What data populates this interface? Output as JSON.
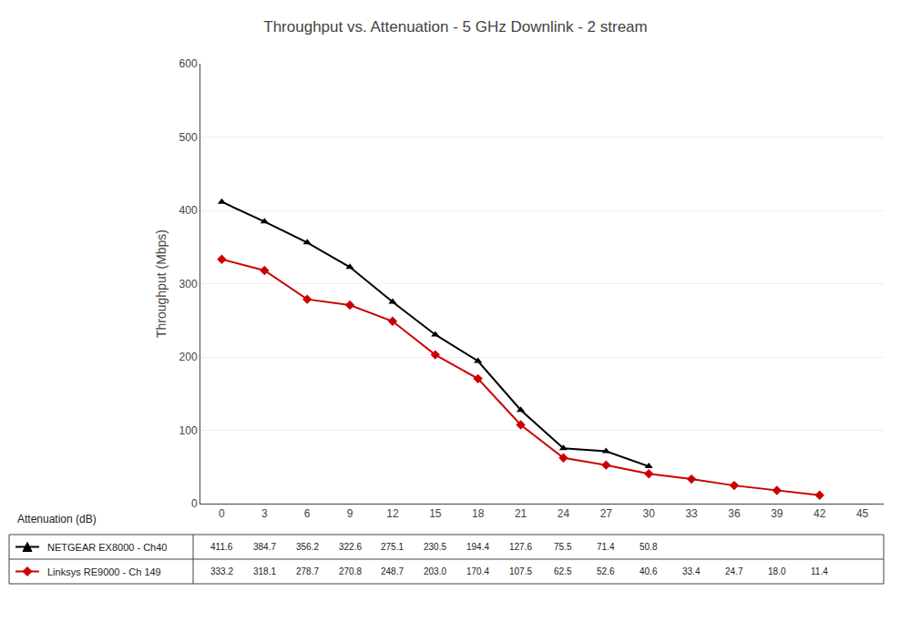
{
  "chart_data": {
    "type": "line",
    "title": "Throughput vs. Attenuation - 5 GHz Downlink - 2 stream",
    "xlabel": "Attenuation (dB)",
    "ylabel": "Throughput (Mbps)",
    "series": [
      {
        "name": "NETGEAR EX8000 - Ch40",
        "color": "#000000",
        "marker": "triangle-up",
        "x": [
          0,
          3,
          6,
          9,
          12,
          15,
          18,
          21,
          24,
          27,
          30
        ],
        "values": [
          411.6,
          384.7,
          356.2,
          322.6,
          275.1,
          230.5,
          194.4,
          127.6,
          75.5,
          71.4,
          50.8
        ],
        "value_labels": [
          "411.6",
          "384.7",
          "356.2",
          "322.6",
          "275.1",
          "230.5",
          "194.4",
          "127.6",
          "75.5",
          "71.4",
          "50.8"
        ]
      },
      {
        "name": "Linksys RE9000 - Ch 149",
        "color": "#cc0000",
        "marker": "diamond",
        "x": [
          0,
          3,
          6,
          9,
          12,
          15,
          18,
          21,
          24,
          27,
          30,
          33,
          36,
          39,
          42
        ],
        "values": [
          333.2,
          318.1,
          278.7,
          270.8,
          248.7,
          203.0,
          170.4,
          107.5,
          62.5,
          52.6,
          40.6,
          33.4,
          24.7,
          18.0,
          11.4
        ],
        "value_labels": [
          "333.2",
          "318.1",
          "278.7",
          "270.8",
          "248.7",
          "203.0",
          "170.4",
          "107.5",
          "62.5",
          "52.6",
          "40.6",
          "33.4",
          "24.7",
          "18.0",
          "11.4"
        ]
      }
    ],
    "xlim": [
      -1.5,
      46.5
    ],
    "xticks": [
      0,
      3,
      6,
      9,
      12,
      15,
      18,
      21,
      24,
      27,
      30,
      33,
      36,
      39,
      42,
      45
    ],
    "ylim": [
      0,
      600
    ],
    "yticks": [
      0,
      100,
      200,
      300,
      400,
      500,
      600
    ],
    "grid": true,
    "data_labels": true
  }
}
